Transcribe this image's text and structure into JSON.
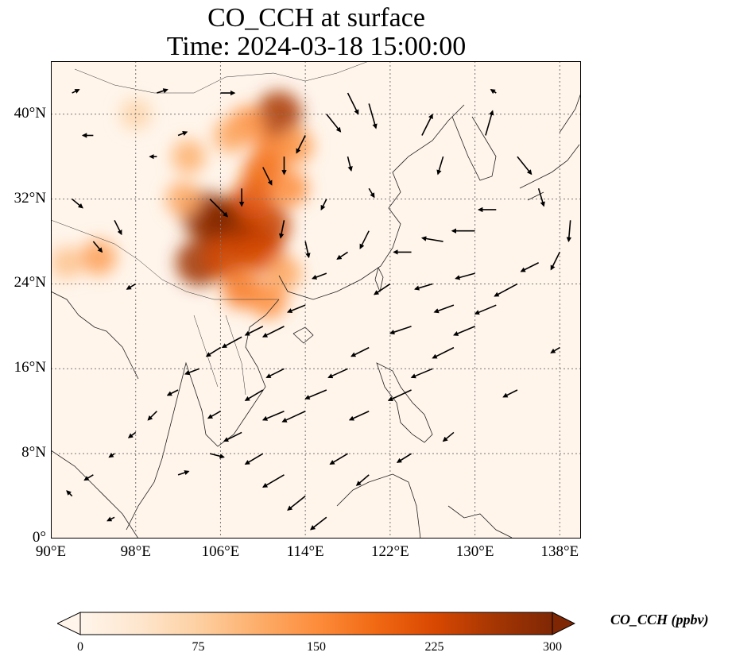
{
  "title": {
    "line1": "CO_CCH at surface",
    "line2": "Time: 2024-03-18 15:00:00"
  },
  "map": {
    "extent": {
      "lon": [
        90,
        140
      ],
      "lat": [
        0,
        45
      ]
    },
    "gridlines": "dotted",
    "lat_ticks": [
      {
        "value": 40,
        "label": "40°N"
      },
      {
        "value": 32,
        "label": "32°N"
      },
      {
        "value": 24,
        "label": "24°N"
      },
      {
        "value": 16,
        "label": "16°N"
      },
      {
        "value": 8,
        "label": "8°N"
      },
      {
        "value": 0,
        "label": "0°"
      }
    ],
    "lon_ticks": [
      {
        "value": 90,
        "label": "90°E"
      },
      {
        "value": 98,
        "label": "98°E"
      },
      {
        "value": 106,
        "label": "106°E"
      },
      {
        "value": 114,
        "label": "114°E"
      },
      {
        "value": 122,
        "label": "122°E"
      },
      {
        "value": 130,
        "label": "130°E"
      },
      {
        "value": 138,
        "label": "138°E"
      }
    ],
    "background_color": "#fff5eb",
    "plumes": [
      {
        "lon": 106.0,
        "lat": 29.5,
        "value": 300
      },
      {
        "lon": 104.5,
        "lat": 30.5,
        "value": 280
      },
      {
        "lon": 107.5,
        "lat": 30.0,
        "value": 300
      },
      {
        "lon": 108.5,
        "lat": 28.0,
        "value": 260
      },
      {
        "lon": 104.0,
        "lat": 26.0,
        "value": 270
      },
      {
        "lon": 106.5,
        "lat": 26.5,
        "value": 230
      },
      {
        "lon": 110.0,
        "lat": 27.0,
        "value": 220
      },
      {
        "lon": 110.5,
        "lat": 29.5,
        "value": 240
      },
      {
        "lon": 109.0,
        "lat": 32.0,
        "value": 210
      },
      {
        "lon": 110.0,
        "lat": 34.5,
        "value": 190
      },
      {
        "lon": 111.0,
        "lat": 36.5,
        "value": 170
      },
      {
        "lon": 111.5,
        "lat": 40.0,
        "value": 260
      },
      {
        "lon": 108.5,
        "lat": 39.0,
        "value": 150
      },
      {
        "lon": 107.0,
        "lat": 38.0,
        "value": 120
      },
      {
        "lon": 103.0,
        "lat": 36.0,
        "value": 110
      },
      {
        "lon": 112.5,
        "lat": 33.0,
        "value": 150
      },
      {
        "lon": 113.0,
        "lat": 37.0,
        "value": 140
      },
      {
        "lon": 108.0,
        "lat": 23.5,
        "value": 170
      },
      {
        "lon": 110.5,
        "lat": 22.5,
        "value": 150
      },
      {
        "lon": 112.0,
        "lat": 25.0,
        "value": 120
      },
      {
        "lon": 94.5,
        "lat": 26.5,
        "value": 130
      },
      {
        "lon": 91.5,
        "lat": 26.0,
        "value": 90
      },
      {
        "lon": 98.0,
        "lat": 40.0,
        "value": 70
      },
      {
        "lon": 102.5,
        "lat": 32.0,
        "value": 120
      }
    ],
    "wind_vectors": [
      [
        105,
        32,
        1,
        -1
      ],
      [
        108,
        33,
        0,
        -1
      ],
      [
        110,
        35,
        0.5,
        -1
      ],
      [
        112,
        36,
        0,
        -1
      ],
      [
        114,
        38,
        -0.5,
        -1
      ],
      [
        116,
        40,
        0.8,
        -1
      ],
      [
        118,
        42,
        0.6,
        -1.2
      ],
      [
        120,
        41,
        0.4,
        -1.4
      ],
      [
        125,
        38,
        0.6,
        1.2
      ],
      [
        127,
        36,
        -0.3,
        -1
      ],
      [
        131,
        38,
        0.4,
        1.4
      ],
      [
        134,
        36,
        0.8,
        -1
      ],
      [
        136,
        33,
        0.3,
        -1
      ],
      [
        139,
        30,
        -0.1,
        -1.2
      ],
      [
        138,
        27,
        -0.5,
        -1
      ],
      [
        132,
        31,
        -1,
        0
      ],
      [
        130,
        29,
        -1.3,
        0
      ],
      [
        127,
        28,
        -1.2,
        0.2
      ],
      [
        124,
        27,
        -1,
        0
      ],
      [
        120,
        29,
        -0.5,
        -1
      ],
      [
        118,
        27,
        -0.6,
        -0.4
      ],
      [
        116,
        25,
        -0.8,
        -0.3
      ],
      [
        114,
        22,
        -1,
        -0.4
      ],
      [
        112,
        20,
        -1.2,
        -0.6
      ],
      [
        110,
        20,
        -1,
        -0.5
      ],
      [
        108,
        19,
        -1.1,
        -0.6
      ],
      [
        106,
        18,
        -0.8,
        -0.5
      ],
      [
        104,
        16,
        -0.8,
        -0.3
      ],
      [
        102,
        14,
        -0.6,
        -0.3
      ],
      [
        100,
        12,
        -0.5,
        -0.5
      ],
      [
        98,
        10,
        -0.4,
        -0.3
      ],
      [
        96,
        8,
        -0.3,
        -0.2
      ],
      [
        94,
        6,
        -0.5,
        -0.3
      ],
      [
        92,
        4,
        -0.3,
        0.3
      ],
      [
        96,
        2,
        -0.4,
        -0.2
      ],
      [
        102,
        6,
        0.6,
        0.2
      ],
      [
        105,
        8,
        0.8,
        -0.2
      ],
      [
        108,
        10,
        -1,
        -0.5
      ],
      [
        110,
        8,
        -1,
        -0.6
      ],
      [
        112,
        6,
        -1.2,
        -0.7
      ],
      [
        114,
        4,
        -1,
        -0.8
      ],
      [
        116,
        2,
        -0.9,
        -0.7
      ],
      [
        118,
        8,
        -1,
        -0.6
      ],
      [
        120,
        12,
        -1.1,
        -0.5
      ],
      [
        124,
        14,
        -1.3,
        -0.6
      ],
      [
        126,
        16,
        -1.2,
        -0.5
      ],
      [
        128,
        18,
        -1.2,
        -0.6
      ],
      [
        130,
        20,
        -1.2,
        -0.5
      ],
      [
        132,
        22,
        -1.2,
        -0.5
      ],
      [
        134,
        24,
        -1.3,
        -0.7
      ],
      [
        136,
        26,
        -1,
        -0.5
      ],
      [
        128,
        22,
        -1.1,
        -0.4
      ],
      [
        124,
        20,
        -1.2,
        -0.4
      ],
      [
        120,
        18,
        -1,
        -0.5
      ],
      [
        118,
        16,
        -1.1,
        -0.5
      ],
      [
        116,
        14,
        -1.2,
        -0.5
      ],
      [
        114,
        12,
        -1.3,
        -0.6
      ],
      [
        112,
        12,
        -1.2,
        -0.5
      ],
      [
        110,
        14,
        -1,
        -0.6
      ],
      [
        122,
        24,
        -0.9,
        -0.6
      ],
      [
        126,
        24,
        -1,
        -0.3
      ],
      [
        130,
        25,
        -1.1,
        -0.3
      ],
      [
        134,
        14,
        -0.8,
        -0.4
      ],
      [
        138,
        18,
        -0.5,
        -0.3
      ],
      [
        128,
        10,
        -0.6,
        -0.5
      ],
      [
        124,
        8,
        -0.8,
        -0.5
      ],
      [
        120,
        6,
        -0.7,
        -0.6
      ],
      [
        112,
        16,
        -1,
        -0.5
      ],
      [
        106,
        12,
        -0.7,
        -0.4
      ],
      [
        98,
        24,
        -0.5,
        -0.3
      ],
      [
        96,
        30,
        0.4,
        -0.8
      ],
      [
        92,
        32,
        0.6,
        -0.5
      ],
      [
        94,
        28,
        0.5,
        -0.6
      ],
      [
        100,
        36,
        -0.4,
        0
      ],
      [
        102,
        38,
        0.5,
        0.2
      ],
      [
        106,
        42,
        0.8,
        0
      ],
      [
        100,
        42,
        0.6,
        0.2
      ],
      [
        94,
        38,
        -0.6,
        0
      ],
      [
        92,
        42,
        0.4,
        0.2
      ],
      [
        112,
        30,
        -0.2,
        -1
      ],
      [
        114,
        28,
        0.2,
        -0.9
      ],
      [
        116,
        32,
        -0.3,
        -0.6
      ],
      [
        118,
        36,
        0.2,
        -0.8
      ],
      [
        120,
        33,
        0.3,
        -0.5
      ],
      [
        132,
        42,
        -0.3,
        0.2
      ]
    ]
  },
  "colorbar": {
    "label": "CO_CCH (ppbv)",
    "min": 0,
    "max": 300,
    "ticks": [
      "0",
      "75",
      "150",
      "225",
      "300"
    ],
    "colors": [
      "#fff5eb",
      "#fee6ce",
      "#fdd0a2",
      "#fdae6b",
      "#fd8d3c",
      "#f16913",
      "#d94801",
      "#a63603",
      "#7f2704"
    ],
    "extend": "both"
  }
}
